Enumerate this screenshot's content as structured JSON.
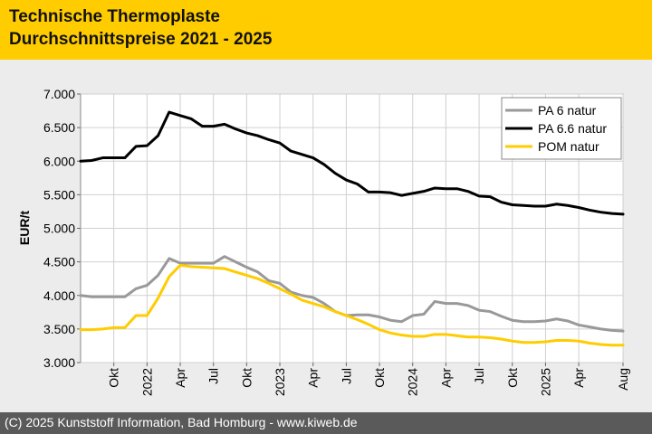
{
  "header": {
    "title_line1": "Technische Thermoplaste",
    "title_line2": "Durchschnittspreise 2021 - 2025",
    "background": "#ffcc00"
  },
  "footer": {
    "text": "(C) 2025 Kunststoff Information, Bad Homburg - www.kiweb.de",
    "background": "#5a5a5a"
  },
  "chart_data": {
    "type": "line",
    "title": "",
    "ylabel": "EUR/t",
    "xlabel": "",
    "ylim": [
      3000,
      7000
    ],
    "yticks": [
      3000,
      3500,
      4000,
      4500,
      5000,
      5500,
      6000,
      6500,
      7000
    ],
    "ytick_labels": [
      "3.000",
      "3.500",
      "4.000",
      "4.500",
      "5.000",
      "5.500",
      "6.000",
      "6.500",
      "7.000"
    ],
    "xticks": [
      {
        "x": 3,
        "label": "Okt"
      },
      {
        "x": 6,
        "label": "2022"
      },
      {
        "x": 9,
        "label": "Apr"
      },
      {
        "x": 12,
        "label": "Jul"
      },
      {
        "x": 15,
        "label": "Okt"
      },
      {
        "x": 18,
        "label": "2023"
      },
      {
        "x": 21,
        "label": "Apr"
      },
      {
        "x": 24,
        "label": "Jul"
      },
      {
        "x": 27,
        "label": "Okt"
      },
      {
        "x": 30,
        "label": "2024"
      },
      {
        "x": 33,
        "label": "Apr"
      },
      {
        "x": 36,
        "label": "Jul"
      },
      {
        "x": 39,
        "label": "Okt"
      },
      {
        "x": 42,
        "label": "2025"
      },
      {
        "x": 45,
        "label": "Apr"
      },
      {
        "x": 49,
        "label": "Aug"
      }
    ],
    "xlim": [
      0,
      49
    ],
    "grid": true,
    "legend_position": "top-right",
    "series": [
      {
        "name": "PA 6 natur",
        "color": "#999999",
        "values": [
          4000,
          3980,
          3980,
          3980,
          3980,
          4100,
          4150,
          4300,
          4550,
          4480,
          4480,
          4480,
          4480,
          4580,
          4500,
          4420,
          4350,
          4220,
          4180,
          4050,
          4000,
          3970,
          3880,
          3760,
          3700,
          3710,
          3710,
          3680,
          3630,
          3610,
          3700,
          3720,
          3910,
          3880,
          3880,
          3850,
          3780,
          3760,
          3690,
          3630,
          3610,
          3610,
          3620,
          3650,
          3620,
          3560,
          3530,
          3500,
          3480,
          3470
        ]
      },
      {
        "name": "PA 6.6 natur",
        "color": "#000000",
        "values": [
          6000,
          6010,
          6050,
          6050,
          6050,
          6220,
          6230,
          6380,
          6730,
          6680,
          6630,
          6520,
          6520,
          6550,
          6480,
          6420,
          6380,
          6320,
          6270,
          6150,
          6100,
          6050,
          5950,
          5820,
          5720,
          5660,
          5540,
          5540,
          5530,
          5490,
          5520,
          5550,
          5600,
          5590,
          5590,
          5550,
          5480,
          5470,
          5390,
          5350,
          5340,
          5330,
          5330,
          5360,
          5340,
          5310,
          5270,
          5240,
          5220,
          5210
        ]
      },
      {
        "name": "POM natur",
        "color": "#ffcc00",
        "values": [
          3490,
          3490,
          3500,
          3520,
          3520,
          3700,
          3700,
          3960,
          4280,
          4450,
          4430,
          4420,
          4410,
          4400,
          4350,
          4300,
          4250,
          4180,
          4100,
          4020,
          3930,
          3880,
          3830,
          3760,
          3700,
          3640,
          3570,
          3490,
          3440,
          3410,
          3390,
          3390,
          3420,
          3420,
          3400,
          3380,
          3380,
          3370,
          3350,
          3320,
          3300,
          3300,
          3310,
          3330,
          3330,
          3320,
          3290,
          3270,
          3260,
          3260
        ]
      }
    ]
  }
}
